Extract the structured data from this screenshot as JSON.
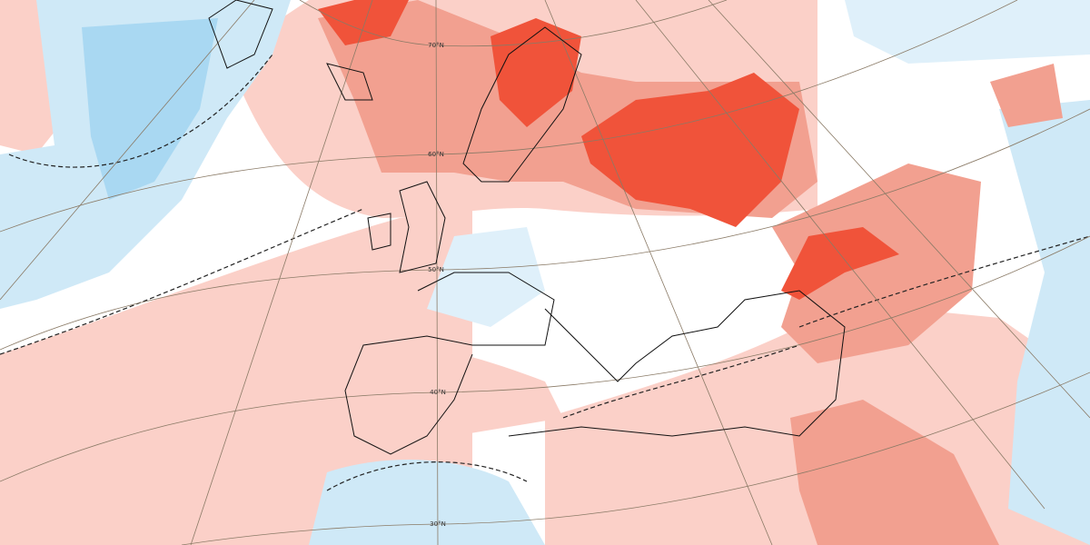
{
  "latitude_labels": [
    "70°N",
    "60°N",
    "50°N",
    "40°N",
    "30°N"
  ]
}
